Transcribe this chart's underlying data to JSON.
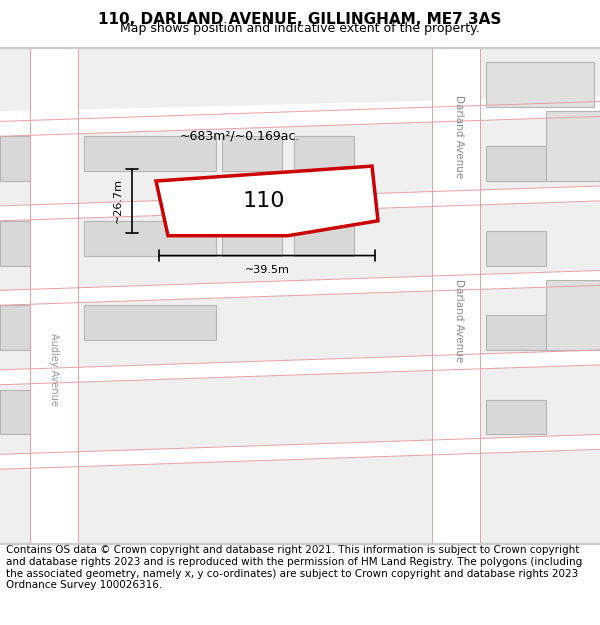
{
  "title": "110, DARLAND AVENUE, GILLINGHAM, ME7 3AS",
  "subtitle": "Map shows position and indicative extent of the property.",
  "footer": "Contains OS data © Crown copyright and database right 2021. This information is subject to Crown copyright and database rights 2023 and is reproduced with the permission of HM Land Registry. The polygons (including the associated geometry, namely x, y co-ordinates) are subject to Crown copyright and database rights 2023 Ordnance Survey 100026316.",
  "bg_color": "#f5f5f5",
  "map_bg": "#f0efef",
  "building_color": "#d8d8d8",
  "building_edge": "#aaaaaa",
  "road_color": "#ffffff",
  "red_line_color": "#cc0000",
  "pink_line_color": "#e8a0a0",
  "property_label": "110",
  "area_label": "~683m²/~0.169ac.",
  "width_label": "~39.5m",
  "height_label": "~26.7m",
  "street_label_top": "Darland Avenue",
  "street_label_bottom": "Darland Avenue",
  "left_street_label": "Audley Avenue",
  "title_fontsize": 11,
  "subtitle_fontsize": 9,
  "footer_fontsize": 7.5
}
